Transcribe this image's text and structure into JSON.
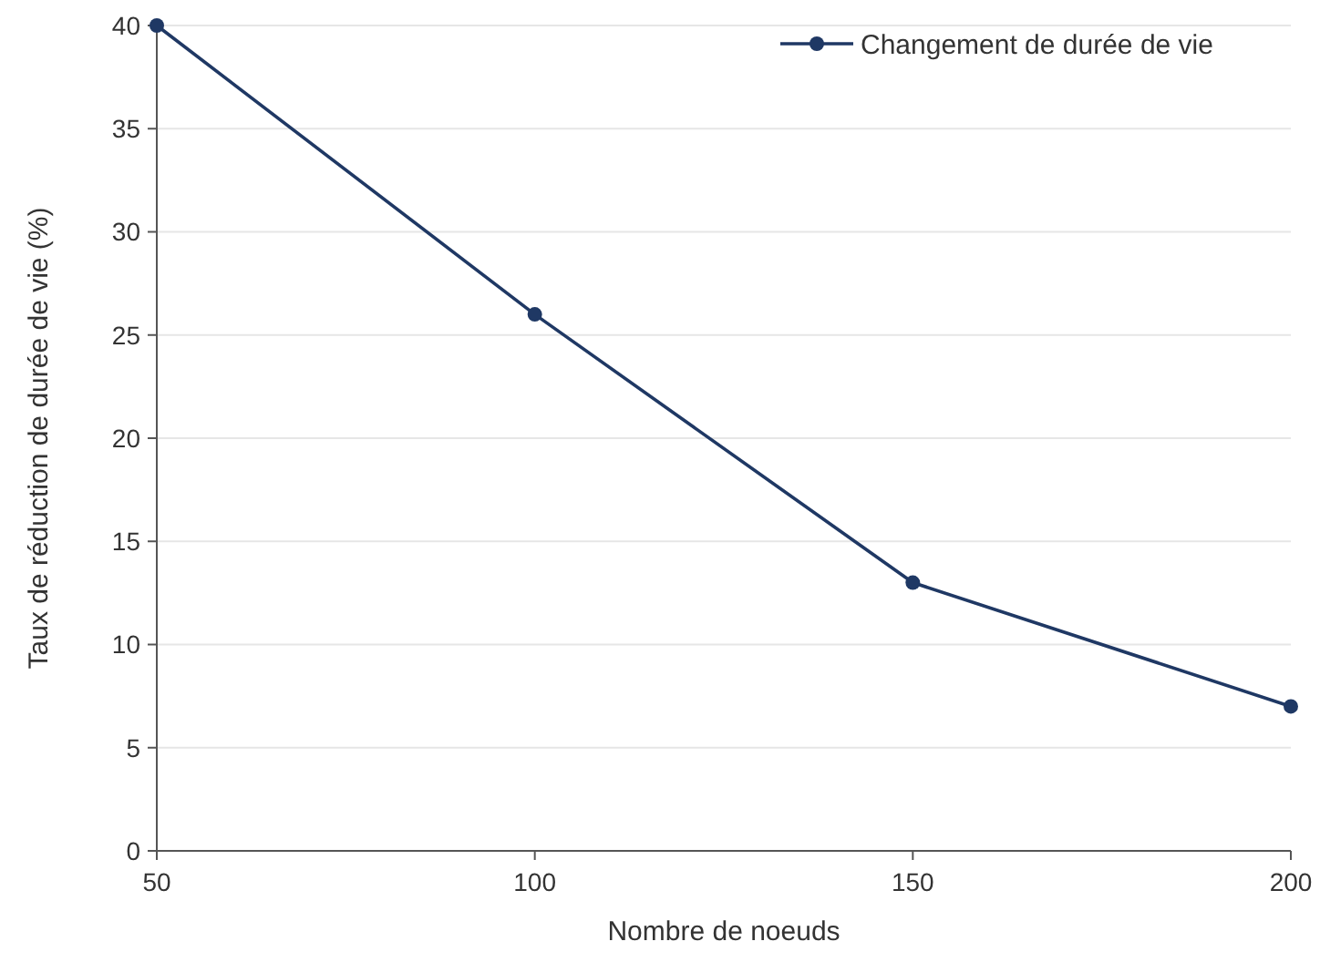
{
  "chart_data": {
    "type": "line",
    "xlabel": "Nombre de noeuds",
    "ylabel": "Taux de réduction de durée de vie (%)",
    "x": [
      50,
      100,
      150,
      200
    ],
    "series": [
      {
        "name": "Changement de durée de vie",
        "color": "#1f3864",
        "values": [
          40,
          26,
          13,
          7
        ]
      }
    ],
    "xlim": [
      50,
      200
    ],
    "xticks": [
      50,
      100,
      150,
      200
    ],
    "ylim": [
      0,
      40
    ],
    "yticks": [
      0,
      5,
      10,
      15,
      20,
      25,
      30,
      35,
      40
    ],
    "grid": "y",
    "legend": "top right",
    "marker": "circle",
    "line_style": "solid"
  }
}
